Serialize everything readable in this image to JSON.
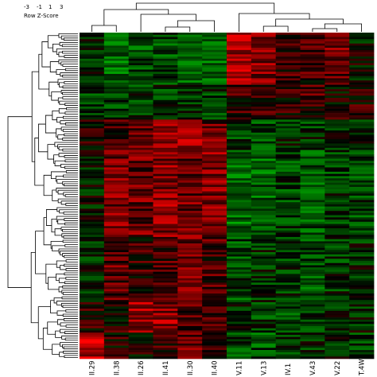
{
  "chart_data": {
    "type": "heatmap",
    "title": "",
    "color_key": {
      "title": "Row Z-Score",
      "ticks": [
        "-3",
        "-1",
        "1",
        "3"
      ],
      "low_color": "#00ff00",
      "mid_color": "#000000",
      "high_color": "#ff0000",
      "range": [
        -3,
        3
      ]
    },
    "columns": [
      "II.29",
      "II.38",
      "II.26",
      "II.41",
      "II.30",
      "II.40",
      "V.11",
      "V.13",
      "IV.1",
      "V.43",
      "V.22",
      "T.4W"
    ],
    "row_count": 150,
    "row_groups": [
      {
        "rows": 24,
        "profile": [
          -0.6,
          -1.4,
          -1.1,
          -1.0,
          -1.3,
          -1.6,
          2.0,
          1.4,
          0.7,
          0.6,
          1.2,
          -0.2
        ]
      },
      {
        "rows": 16,
        "profile": [
          -1.0,
          -0.9,
          -0.8,
          -0.7,
          -0.5,
          -0.8,
          0.6,
          0.5,
          0.3,
          0.7,
          0.2,
          0.4
        ]
      },
      {
        "rows": 14,
        "profile": [
          0.3,
          0.8,
          1.0,
          1.4,
          1.6,
          1.2,
          -0.8,
          -0.9,
          -0.6,
          -0.7,
          -0.5,
          -0.6
        ]
      },
      {
        "rows": 40,
        "profile": [
          -0.3,
          1.4,
          1.2,
          1.6,
          1.3,
          1.5,
          -1.5,
          -1.4,
          -0.9,
          -1.2,
          -0.8,
          -0.9
        ]
      },
      {
        "rows": 30,
        "profile": [
          -0.5,
          1.0,
          0.5,
          0.9,
          1.2,
          0.8,
          -1.0,
          -0.6,
          -0.8,
          -1.1,
          -0.7,
          -0.5
        ]
      },
      {
        "rows": 14,
        "profile": [
          0.4,
          0.3,
          1.7,
          1.6,
          0.8,
          0.5,
          -0.6,
          -0.8,
          -1.0,
          -0.7,
          -0.6,
          -0.4
        ]
      },
      {
        "rows": 12,
        "profile": [
          2.0,
          0.4,
          0.3,
          0.5,
          1.3,
          0.4,
          -0.9,
          -1.1,
          -0.8,
          -0.6,
          -0.6,
          -0.7
        ]
      }
    ],
    "col_dendrogram": "two clusters: [II.29, II.38, II.26, II.41, II.30, II.40] and [V.11, V.13, IV.1, V.43, V.22, T.4W]",
    "row_dendrogram": "hierarchical clustering of rows shown on the left",
    "grid": false,
    "legend_position": "top-left"
  }
}
